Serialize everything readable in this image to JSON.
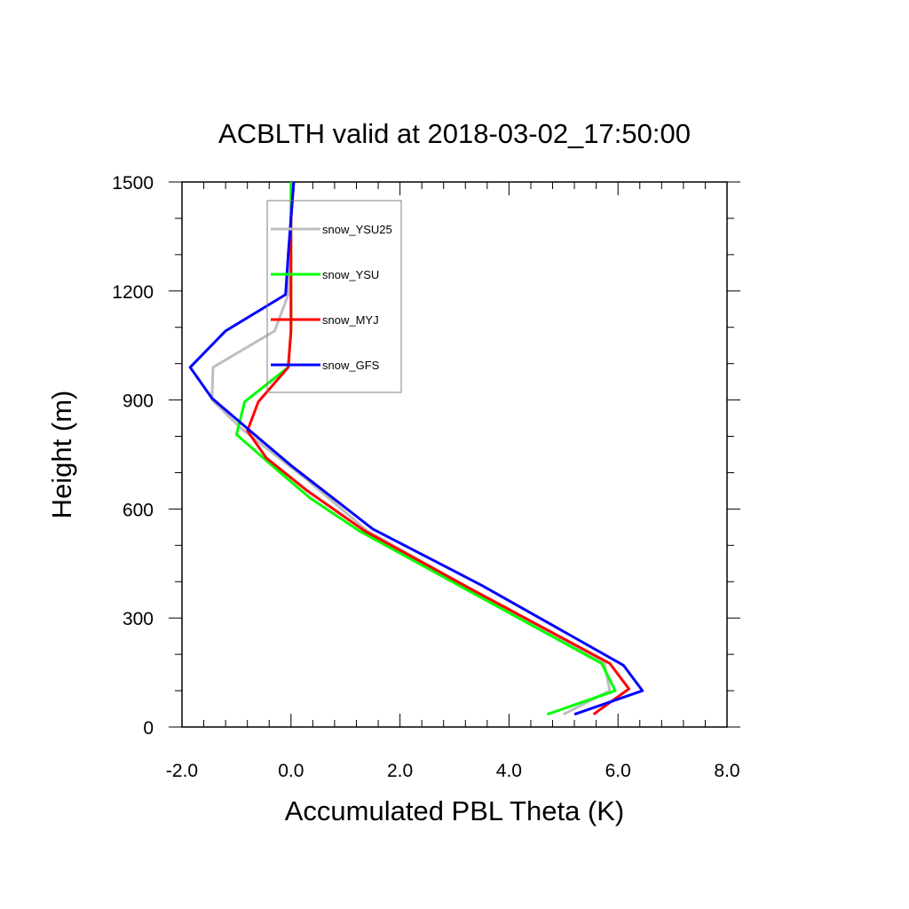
{
  "chart_data": {
    "type": "line",
    "title": "ACBLTH valid at 2018-03-02_17:50:00",
    "xlabel": "Accumulated PBL Theta (K)",
    "ylabel": "Height (m)",
    "xlim": [
      -2.0,
      8.0
    ],
    "ylim": [
      0,
      1500
    ],
    "x_ticks": [
      -2.0,
      0.0,
      2.0,
      4.0,
      6.0,
      8.0
    ],
    "x_tick_labels": [
      "-2.0",
      "0.0",
      "2.0",
      "4.0",
      "6.0",
      "8.0"
    ],
    "y_ticks": [
      0,
      300,
      600,
      900,
      1200,
      1500
    ],
    "y_tick_labels": [
      "0",
      "300",
      "600",
      "900",
      "1200",
      "1500"
    ],
    "x_minor_step": 0.4,
    "y_minor_step": 100,
    "grid": false,
    "legend_position": "top-center",
    "series": [
      {
        "name": "snow_YSU25",
        "color": "#bebebe",
        "points": [
          [
            5.0,
            35
          ],
          [
            5.85,
            100
          ],
          [
            5.75,
            175
          ],
          [
            3.3,
            380
          ],
          [
            1.4,
            540
          ],
          [
            0.3,
            680
          ],
          [
            -0.9,
            820
          ],
          [
            -1.45,
            900
          ],
          [
            -1.43,
            990
          ],
          [
            -0.3,
            1090
          ],
          [
            -0.05,
            1190
          ],
          [
            -0.05,
            1300
          ],
          [
            0.0,
            1400
          ],
          [
            0.05,
            1500
          ]
        ]
      },
      {
        "name": "snow_YSU",
        "color": "#00ff00",
        "points": [
          [
            4.7,
            35
          ],
          [
            5.95,
            100
          ],
          [
            5.7,
            175
          ],
          [
            3.2,
            380
          ],
          [
            1.25,
            540
          ],
          [
            0.35,
            630
          ],
          [
            -0.35,
            720
          ],
          [
            -1.0,
            805
          ],
          [
            -0.85,
            895
          ],
          [
            -0.05,
            990
          ],
          [
            0.0,
            1090
          ],
          [
            0.0,
            1200
          ],
          [
            0.0,
            1300
          ],
          [
            0.0,
            1400
          ],
          [
            0.0,
            1500
          ]
        ]
      },
      {
        "name": "snow_MYJ",
        "color": "#ff0000",
        "points": [
          [
            5.55,
            35
          ],
          [
            6.2,
            105
          ],
          [
            5.85,
            175
          ],
          [
            3.3,
            380
          ],
          [
            1.35,
            540
          ],
          [
            0.3,
            650
          ],
          [
            -0.45,
            740
          ],
          [
            -0.8,
            815
          ],
          [
            -0.6,
            895
          ],
          [
            -0.05,
            990
          ],
          [
            0.0,
            1090
          ],
          [
            0.0,
            1200
          ],
          [
            0.0,
            1300
          ],
          [
            0.0,
            1400
          ],
          [
            0.05,
            1500
          ]
        ]
      },
      {
        "name": "snow_GFS",
        "color": "#0000ff",
        "points": [
          [
            5.2,
            35
          ],
          [
            6.45,
            100
          ],
          [
            6.1,
            170
          ],
          [
            3.5,
            390
          ],
          [
            1.5,
            545
          ],
          [
            0.0,
            720
          ],
          [
            -0.75,
            815
          ],
          [
            -1.45,
            905
          ],
          [
            -1.85,
            990
          ],
          [
            -1.2,
            1090
          ],
          [
            -0.1,
            1190
          ],
          [
            -0.05,
            1300
          ],
          [
            0.0,
            1400
          ],
          [
            0.05,
            1500
          ]
        ]
      }
    ]
  }
}
